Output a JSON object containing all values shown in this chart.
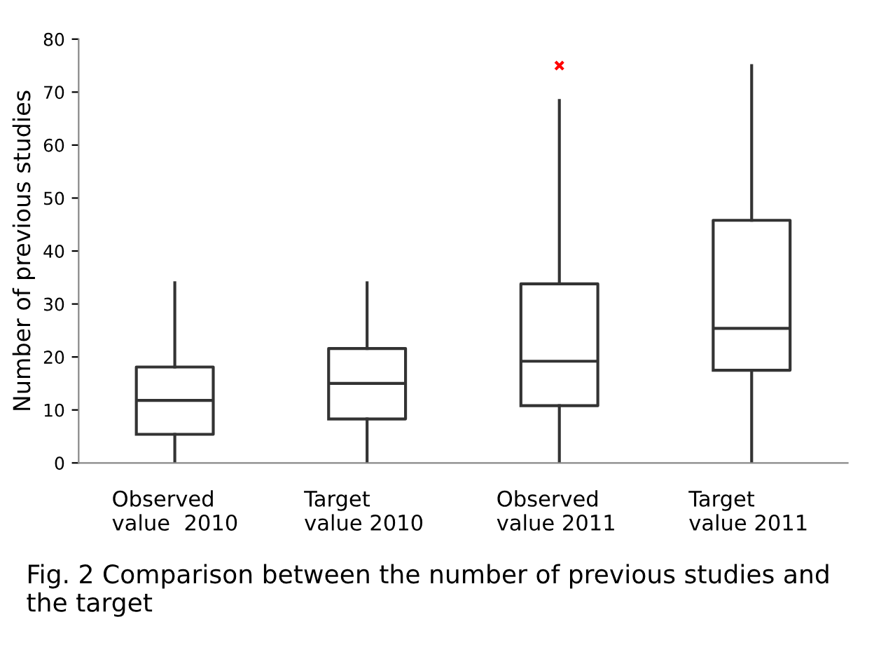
{
  "chart_data": {
    "type": "box",
    "ylabel": "Number of previous studies",
    "categories": [
      "Observed\nvalue  2010",
      "Target\nvalue 2010",
      "Observed\nvalue 2011",
      "Target\nvalue 2011"
    ],
    "boxes": [
      {
        "low": 0,
        "q1": 5.4,
        "median": 11.8,
        "q3": 18.1,
        "high": 34
      },
      {
        "low": 0,
        "q1": 8.3,
        "median": 15,
        "q3": 21.6,
        "high": 34
      },
      {
        "low": 0,
        "q1": 10.8,
        "median": 19.2,
        "q3": 33.8,
        "high": 68.4,
        "outliers": [
          75
        ]
      },
      {
        "low": 0,
        "q1": 17.5,
        "median": 25.4,
        "q3": 45.8,
        "high": 75
      }
    ],
    "ylim": [
      0,
      80
    ],
    "yticks": [
      0,
      10,
      20,
      30,
      40,
      50,
      60,
      70,
      80
    ],
    "grid": false,
    "annotations": [
      "Fig. 2 Comparison between the number of previous studies and the target"
    ]
  }
}
